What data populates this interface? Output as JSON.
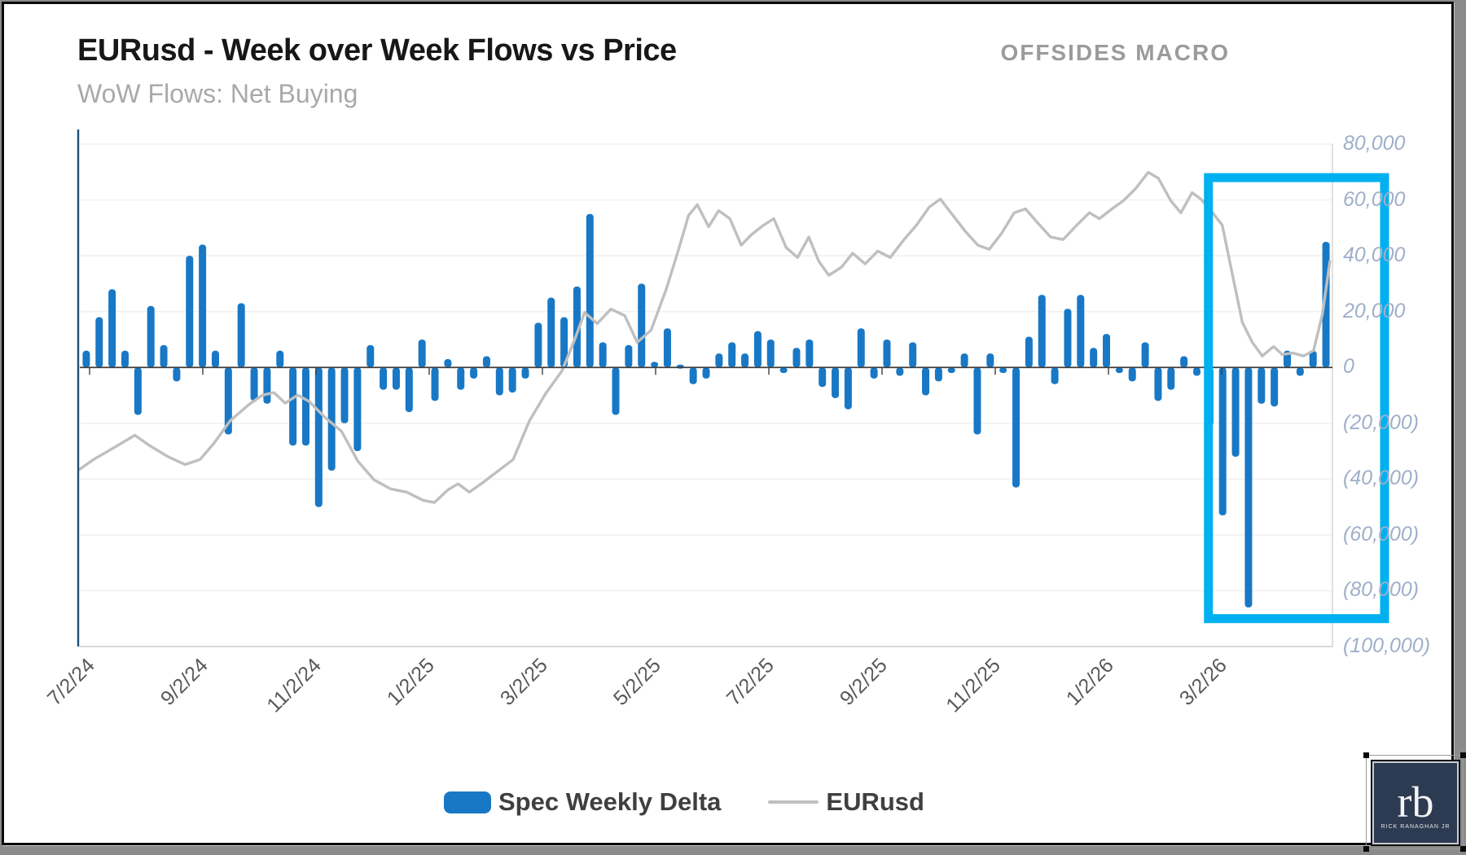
{
  "header": {
    "title": "EURusd - Week over Week Flows vs Price",
    "subtitle": "WoW Flows: Net Buying",
    "brand": "OFFSIDES MACRO"
  },
  "legend": {
    "bar_label": "Spec Weekly Delta",
    "line_label": "EURusd"
  },
  "logo": {
    "initials": "rb",
    "caption": "RICK RANAGHAN JR"
  },
  "colors": {
    "bar_blue": "#1878c6",
    "line_gray": "#bfbfbf",
    "zero_line": "#3f3f3f",
    "gridline": "#f1f1f1",
    "plot_border": "#d9d9d9",
    "left_axis_line": "#1f4e79",
    "highlight_cyan": "#00b0f0",
    "axis_label_blue_gray": "#9fafc9",
    "date_label_gray": "#595959",
    "subtitle_gray": "#a9a9a9"
  },
  "chart_data": {
    "type": "bar+line combo, weekly",
    "title": "EURusd - Week over Week Flows vs Price",
    "subtitle": "WoW Flows: Net Buying",
    "y_axis": {
      "side": "right",
      "min": -100000,
      "max": 80000,
      "step": 20000,
      "tick_labels": [
        "80,000",
        "60,000",
        "40,000",
        "20,000",
        "0",
        "(20,000)",
        "(40,000)",
        "(60,000)",
        "(80,000)",
        "(100,000)"
      ],
      "tick_values": [
        80000,
        60000,
        40000,
        20000,
        0,
        -20000,
        -40000,
        -60000,
        -80000,
        -100000
      ],
      "grid": "faint horizontal"
    },
    "x_axis": {
      "tick_labels": [
        "7/2/24",
        "9/2/24",
        "11/2/24",
        "1/2/25",
        "3/2/25",
        "5/2/25",
        "7/2/25",
        "9/2/25",
        "11/2/25",
        "1/2/26",
        "3/2/26"
      ],
      "label_rotation_deg": -45,
      "note": "weekly bars, tick every 2 months"
    },
    "series": [
      {
        "name": "Spec Weekly Delta",
        "type": "bar",
        "values": [
          6000,
          18000,
          28000,
          6000,
          -17000,
          22000,
          8000,
          -5000,
          40000,
          44000,
          6000,
          -24000,
          23000,
          -12000,
          -13000,
          6000,
          -28000,
          -28000,
          -50000,
          -37000,
          -20000,
          -30000,
          8000,
          -8000,
          -8000,
          -16000,
          10000,
          -12000,
          3000,
          -8000,
          -4000,
          4000,
          -10000,
          -9000,
          -4000,
          16000,
          25000,
          18000,
          29000,
          55000,
          9000,
          -17000,
          8000,
          30000,
          2000,
          14000,
          1000,
          -6000,
          -4000,
          5000,
          9000,
          5000,
          13000,
          10000,
          -2000,
          7000,
          10000,
          -7000,
          -11000,
          -15000,
          14000,
          -4000,
          10000,
          -3000,
          9000,
          -10000,
          -5000,
          -2000,
          5000,
          -24000,
          5000,
          -2000,
          -43000,
          11000,
          26000,
          -6000,
          21000,
          26000,
          7000,
          12000,
          -2000,
          -5000,
          9000,
          -12000,
          -8000,
          4000,
          -3000,
          -21000,
          -53000,
          -32000,
          -86000,
          -13000,
          -14000,
          6000,
          -3000,
          6000,
          45000
        ]
      },
      {
        "name": "EURusd",
        "type": "line",
        "note": "price axis hidden; points read as [fraction of plot width, flow-axis-equivalent value]",
        "points": [
          [
            0.0,
            -36500
          ],
          [
            0.011,
            -33000
          ],
          [
            0.024,
            -29600
          ],
          [
            0.044,
            -24300
          ],
          [
            0.055,
            -27800
          ],
          [
            0.07,
            -31900
          ],
          [
            0.084,
            -34800
          ],
          [
            0.096,
            -33000
          ],
          [
            0.107,
            -27200
          ],
          [
            0.12,
            -19100
          ],
          [
            0.135,
            -13300
          ],
          [
            0.146,
            -9900
          ],
          [
            0.155,
            -9000
          ],
          [
            0.164,
            -12800
          ],
          [
            0.174,
            -9900
          ],
          [
            0.183,
            -12200
          ],
          [
            0.196,
            -18000
          ],
          [
            0.209,
            -22900
          ],
          [
            0.222,
            -33600
          ],
          [
            0.235,
            -40300
          ],
          [
            0.248,
            -43500
          ],
          [
            0.261,
            -44700
          ],
          [
            0.274,
            -47600
          ],
          [
            0.283,
            -48400
          ],
          [
            0.294,
            -43800
          ],
          [
            0.302,
            -41700
          ],
          [
            0.311,
            -44700
          ],
          [
            0.322,
            -41200
          ],
          [
            0.333,
            -37400
          ],
          [
            0.346,
            -33000
          ],
          [
            0.359,
            -19100
          ],
          [
            0.372,
            -9300
          ],
          [
            0.385,
            -1200
          ],
          [
            0.395,
            9900
          ],
          [
            0.403,
            19700
          ],
          [
            0.413,
            15700
          ],
          [
            0.424,
            20900
          ],
          [
            0.435,
            18600
          ],
          [
            0.445,
            9000
          ],
          [
            0.456,
            13300
          ],
          [
            0.468,
            27800
          ],
          [
            0.478,
            42300
          ],
          [
            0.486,
            54500
          ],
          [
            0.493,
            58300
          ],
          [
            0.502,
            50400
          ],
          [
            0.51,
            56200
          ],
          [
            0.519,
            53300
          ],
          [
            0.528,
            43800
          ],
          [
            0.536,
            47500
          ],
          [
            0.546,
            51000
          ],
          [
            0.554,
            53300
          ],
          [
            0.564,
            42900
          ],
          [
            0.573,
            39400
          ],
          [
            0.582,
            46700
          ],
          [
            0.59,
            38000
          ],
          [
            0.598,
            33000
          ],
          [
            0.608,
            35900
          ],
          [
            0.617,
            40900
          ],
          [
            0.627,
            37100
          ],
          [
            0.637,
            41700
          ],
          [
            0.647,
            39400
          ],
          [
            0.658,
            45800
          ],
          [
            0.668,
            51000
          ],
          [
            0.678,
            57400
          ],
          [
            0.687,
            60300
          ],
          [
            0.697,
            54500
          ],
          [
            0.707,
            48700
          ],
          [
            0.717,
            43800
          ],
          [
            0.726,
            42300
          ],
          [
            0.736,
            48100
          ],
          [
            0.746,
            55400
          ],
          [
            0.755,
            56800
          ],
          [
            0.765,
            51600
          ],
          [
            0.775,
            46700
          ],
          [
            0.785,
            45800
          ],
          [
            0.796,
            51000
          ],
          [
            0.806,
            55400
          ],
          [
            0.814,
            53300
          ],
          [
            0.824,
            56800
          ],
          [
            0.833,
            59700
          ],
          [
            0.843,
            64100
          ],
          [
            0.853,
            69900
          ],
          [
            0.861,
            67800
          ],
          [
            0.871,
            59700
          ],
          [
            0.879,
            55400
          ],
          [
            0.888,
            62600
          ],
          [
            0.895,
            60300
          ],
          [
            0.903,
            56200
          ],
          [
            0.912,
            51000
          ],
          [
            0.92,
            33600
          ],
          [
            0.928,
            16200
          ],
          [
            0.936,
            9000
          ],
          [
            0.944,
            4100
          ],
          [
            0.953,
            7500
          ],
          [
            0.96,
            4600
          ],
          [
            0.968,
            5200
          ],
          [
            0.977,
            4100
          ],
          [
            0.985,
            6100
          ],
          [
            0.992,
            19100
          ],
          [
            0.998,
            38000
          ]
        ]
      }
    ],
    "highlight_box": {
      "shape": "cyan rectangle",
      "covers": "bars from 3/2/26 onward plus right axis gap",
      "from_width_fraction": 0.901,
      "value_top": 68000,
      "value_bottom": -90000
    },
    "legend_position": "bottom center"
  }
}
